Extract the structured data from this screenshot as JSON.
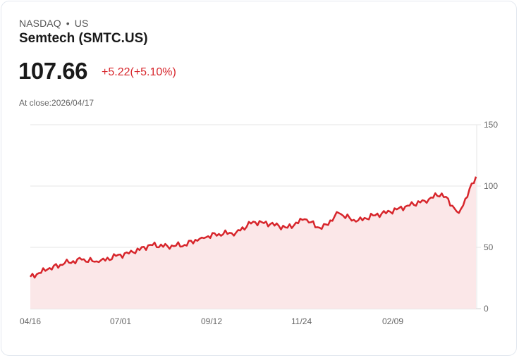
{
  "header": {
    "exchange": "NASDAQ",
    "separator": "•",
    "region": "US",
    "title": "Semtech (SMTC.US)"
  },
  "quote": {
    "price": "107.66",
    "change": "+5.22(+5.10%)",
    "close_label": "At close:2026/04/17"
  },
  "colors": {
    "line": "#d7262c",
    "fill": "#fbe7e8",
    "grid": "#e3e3e3",
    "up": "#d7262c"
  },
  "chart_data": {
    "type": "area",
    "title": "Semtech (SMTC.US)",
    "xlabel": "",
    "ylabel": "",
    "ylim": [
      0,
      150
    ],
    "yticks": [
      0,
      50,
      100,
      150
    ],
    "y_axis_position": "right",
    "grid": true,
    "legend": null,
    "x_tick_labels": [
      "04/16",
      "07/01",
      "09/12",
      "11/24",
      "02/09"
    ],
    "x": [
      "04/16",
      "04/30",
      "05/14",
      "05/28",
      "06/11",
      "06/25",
      "07/09",
      "07/23",
      "08/06",
      "08/20",
      "09/03",
      "09/17",
      "10/01",
      "10/15",
      "10/29",
      "11/12",
      "11/26",
      "12/10",
      "12/24",
      "01/07",
      "01/21",
      "02/04",
      "02/18",
      "03/04",
      "03/18",
      "04/01",
      "04/17"
    ],
    "values": [
      26,
      32,
      37,
      40,
      38,
      43,
      46,
      52,
      51,
      52,
      58,
      61,
      62,
      71,
      69,
      66,
      73,
      65,
      78,
      71,
      76,
      79,
      84,
      88,
      94,
      78,
      107.66
    ]
  }
}
